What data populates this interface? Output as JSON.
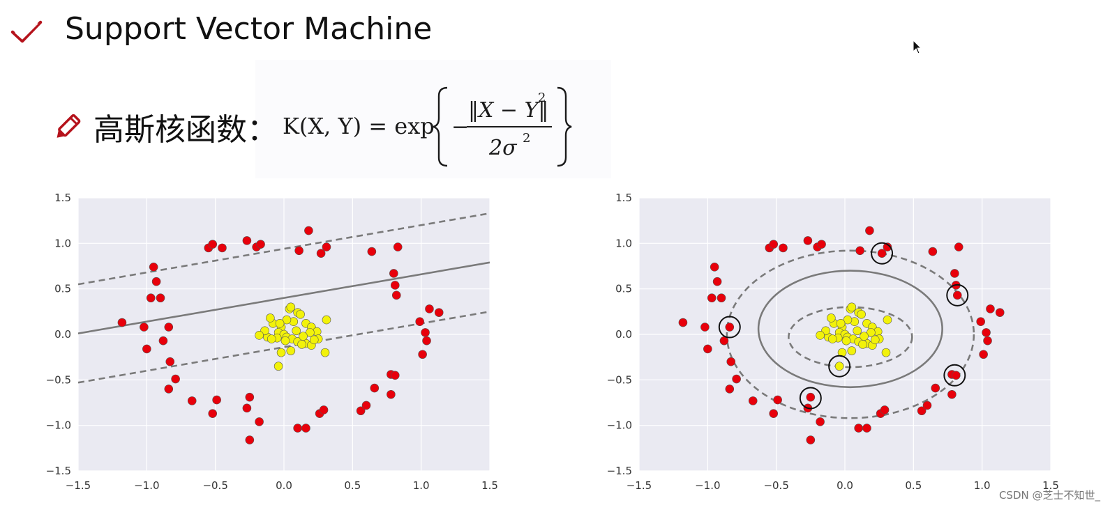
{
  "slide": {
    "title": "Support Vector Machine",
    "subtitle": "高斯核函数：",
    "formula": {
      "lhs": "K(X, Y) = exp",
      "numerator": "‖X − Y‖",
      "numerator_exp": "2",
      "denominator": "2σ",
      "denominator_exp": "2"
    },
    "check_icon": "check-icon",
    "pencil_icon": "pencil-icon",
    "accent_color": "#b5121b"
  },
  "watermark": "CSDN @芝士不知世_",
  "chart_data": [
    {
      "type": "scatter",
      "title": "",
      "xlabel": "",
      "ylabel": "",
      "xlim": [
        -1.5,
        1.5
      ],
      "ylim": [
        -1.5,
        1.5
      ],
      "xticks": [
        "−1.5",
        "−1.0",
        "−0.5",
        "0.0",
        "0.5",
        "1.0",
        "1.5"
      ],
      "yticks": [
        "1.5",
        "1.0",
        "0.5",
        "0.0",
        "−0.5",
        "−1.0",
        "−1.5"
      ],
      "grid": true,
      "decision_boundary": {
        "kind": "linear",
        "slope": 0.26,
        "intercept": 0.4,
        "margin_offset": 0.54
      },
      "series": [
        {
          "color": "#e8000b",
          "points": [
            [
              -1.18,
              0.13
            ],
            [
              -1.02,
              0.08
            ],
            [
              -1.0,
              -0.16
            ],
            [
              -0.97,
              0.4
            ],
            [
              -0.95,
              0.74
            ],
            [
              -0.93,
              0.58
            ],
            [
              -0.9,
              0.4
            ],
            [
              -0.88,
              -0.07
            ],
            [
              -0.84,
              0.08
            ],
            [
              -0.83,
              -0.3
            ],
            [
              -0.84,
              -0.6
            ],
            [
              -0.79,
              -0.49
            ],
            [
              -0.67,
              -0.73
            ],
            [
              -0.55,
              0.95
            ],
            [
              -0.52,
              0.99
            ],
            [
              -0.45,
              0.95
            ],
            [
              -0.52,
              -0.87
            ],
            [
              -0.49,
              -0.72
            ],
            [
              -0.27,
              1.03
            ],
            [
              -0.2,
              0.96
            ],
            [
              -0.17,
              0.99
            ],
            [
              -0.27,
              -0.81
            ],
            [
              -0.25,
              -0.69
            ],
            [
              -0.25,
              -1.16
            ],
            [
              -0.18,
              -0.96
            ],
            [
              0.11,
              0.92
            ],
            [
              0.18,
              1.14
            ],
            [
              0.27,
              0.89
            ],
            [
              0.31,
              0.96
            ],
            [
              0.1,
              -1.03
            ],
            [
              0.16,
              -1.03
            ],
            [
              0.26,
              -0.87
            ],
            [
              0.29,
              -0.83
            ],
            [
              0.56,
              -0.84
            ],
            [
              0.6,
              -0.78
            ],
            [
              0.64,
              0.91
            ],
            [
              0.66,
              -0.59
            ],
            [
              0.8,
              0.67
            ],
            [
              0.81,
              0.54
            ],
            [
              0.82,
              0.43
            ],
            [
              0.83,
              0.96
            ],
            [
              0.78,
              -0.44
            ],
            [
              0.81,
              -0.45
            ],
            [
              0.78,
              -0.66
            ],
            [
              0.99,
              0.14
            ],
            [
              1.03,
              0.02
            ],
            [
              1.04,
              -0.07
            ],
            [
              1.01,
              -0.22
            ],
            [
              1.06,
              0.28
            ],
            [
              1.13,
              0.24
            ]
          ]
        },
        {
          "color": "#f2f20a",
          "points": [
            [
              0.04,
              0.28
            ],
            [
              0.05,
              0.3
            ],
            [
              0.1,
              0.24
            ],
            [
              0.12,
              0.22
            ],
            [
              0.16,
              0.12
            ],
            [
              0.2,
              0.08
            ],
            [
              0.24,
              0.03
            ],
            [
              0.07,
              0.14
            ],
            [
              0.02,
              0.16
            ],
            [
              -0.02,
              0.08
            ],
            [
              -0.04,
              0.02
            ],
            [
              0.0,
              0.0
            ],
            [
              0.02,
              -0.03
            ],
            [
              0.06,
              -0.05
            ],
            [
              0.1,
              -0.08
            ],
            [
              0.16,
              -0.1
            ],
            [
              0.2,
              -0.12
            ],
            [
              0.25,
              -0.05
            ],
            [
              0.31,
              0.16
            ],
            [
              -0.08,
              0.12
            ],
            [
              -0.1,
              0.18
            ],
            [
              -0.12,
              -0.03
            ],
            [
              -0.05,
              -0.04
            ],
            [
              0.01,
              -0.07
            ],
            [
              -0.09,
              -0.05
            ],
            [
              -0.14,
              0.04
            ],
            [
              -0.18,
              -0.01
            ],
            [
              -0.02,
              -0.2
            ],
            [
              0.05,
              -0.18
            ],
            [
              0.13,
              -0.11
            ],
            [
              0.19,
              0.02
            ],
            [
              0.09,
              0.04
            ],
            [
              0.14,
              -0.02
            ],
            [
              0.3,
              -0.2
            ],
            [
              -0.04,
              -0.35
            ],
            [
              0.22,
              -0.06
            ],
            [
              -0.03,
              0.12
            ]
          ]
        }
      ]
    },
    {
      "type": "scatter",
      "title": "",
      "xlabel": "",
      "ylabel": "",
      "xlim": [
        -1.5,
        1.5
      ],
      "ylim": [
        -1.5,
        1.5
      ],
      "xticks": [
        "−1.5",
        "−1.0",
        "−0.5",
        "0.0",
        "0.5",
        "1.0",
        "1.5"
      ],
      "yticks": [
        "1.5",
        "1.0",
        "0.5",
        "0.0",
        "−0.5",
        "−1.0",
        "−1.5"
      ],
      "grid": true,
      "decision_boundary": {
        "kind": "rbf",
        "contours": [
          {
            "level": "margin-inner",
            "center": [
              0.04,
              -0.03
            ],
            "rx": 0.45,
            "ry": 0.33,
            "dashed": true
          },
          {
            "level": "boundary",
            "center": [
              0.04,
              0.06
            ],
            "rx": 0.67,
            "ry": 0.64,
            "dashed": false
          },
          {
            "level": "margin-outer",
            "center": [
              0.04,
              0.0
            ],
            "rx": 0.9,
            "ry": 0.92,
            "dashed": true
          }
        ]
      },
      "support_vectors": [
        [
          -0.84,
          0.08
        ],
        [
          0.27,
          0.89
        ],
        [
          0.82,
          0.43
        ],
        [
          0.8,
          -0.45
        ],
        [
          -0.25,
          -0.7
        ],
        [
          -0.04,
          -0.35
        ]
      ],
      "series": [
        {
          "color": "#e8000b",
          "points": [
            [
              -1.18,
              0.13
            ],
            [
              -1.02,
              0.08
            ],
            [
              -1.0,
              -0.16
            ],
            [
              -0.97,
              0.4
            ],
            [
              -0.95,
              0.74
            ],
            [
              -0.93,
              0.58
            ],
            [
              -0.9,
              0.4
            ],
            [
              -0.88,
              -0.07
            ],
            [
              -0.84,
              0.08
            ],
            [
              -0.83,
              -0.3
            ],
            [
              -0.84,
              -0.6
            ],
            [
              -0.79,
              -0.49
            ],
            [
              -0.67,
              -0.73
            ],
            [
              -0.55,
              0.95
            ],
            [
              -0.52,
              0.99
            ],
            [
              -0.45,
              0.95
            ],
            [
              -0.52,
              -0.87
            ],
            [
              -0.49,
              -0.72
            ],
            [
              -0.27,
              1.03
            ],
            [
              -0.2,
              0.96
            ],
            [
              -0.17,
              0.99
            ],
            [
              -0.27,
              -0.81
            ],
            [
              -0.25,
              -0.69
            ],
            [
              -0.25,
              -1.16
            ],
            [
              -0.18,
              -0.96
            ],
            [
              0.11,
              0.92
            ],
            [
              0.18,
              1.14
            ],
            [
              0.27,
              0.89
            ],
            [
              0.31,
              0.96
            ],
            [
              0.1,
              -1.03
            ],
            [
              0.16,
              -1.03
            ],
            [
              0.26,
              -0.87
            ],
            [
              0.29,
              -0.83
            ],
            [
              0.56,
              -0.84
            ],
            [
              0.6,
              -0.78
            ],
            [
              0.64,
              0.91
            ],
            [
              0.66,
              -0.59
            ],
            [
              0.8,
              0.67
            ],
            [
              0.81,
              0.54
            ],
            [
              0.82,
              0.43
            ],
            [
              0.83,
              0.96
            ],
            [
              0.78,
              -0.44
            ],
            [
              0.81,
              -0.45
            ],
            [
              0.78,
              -0.66
            ],
            [
              0.99,
              0.14
            ],
            [
              1.03,
              0.02
            ],
            [
              1.04,
              -0.07
            ],
            [
              1.01,
              -0.22
            ],
            [
              1.06,
              0.28
            ],
            [
              1.13,
              0.24
            ]
          ]
        },
        {
          "color": "#f2f20a",
          "points": [
            [
              0.04,
              0.28
            ],
            [
              0.05,
              0.3
            ],
            [
              0.1,
              0.24
            ],
            [
              0.12,
              0.22
            ],
            [
              0.16,
              0.12
            ],
            [
              0.2,
              0.08
            ],
            [
              0.24,
              0.03
            ],
            [
              0.07,
              0.14
            ],
            [
              0.02,
              0.16
            ],
            [
              -0.02,
              0.08
            ],
            [
              -0.04,
              0.02
            ],
            [
              0.0,
              0.0
            ],
            [
              0.02,
              -0.03
            ],
            [
              0.06,
              -0.05
            ],
            [
              0.1,
              -0.08
            ],
            [
              0.16,
              -0.1
            ],
            [
              0.2,
              -0.12
            ],
            [
              0.25,
              -0.05
            ],
            [
              0.31,
              0.16
            ],
            [
              -0.08,
              0.12
            ],
            [
              -0.1,
              0.18
            ],
            [
              -0.12,
              -0.03
            ],
            [
              -0.05,
              -0.04
            ],
            [
              0.01,
              -0.07
            ],
            [
              -0.09,
              -0.05
            ],
            [
              -0.14,
              0.04
            ],
            [
              -0.18,
              -0.01
            ],
            [
              -0.02,
              -0.2
            ],
            [
              0.05,
              -0.18
            ],
            [
              0.13,
              -0.11
            ],
            [
              0.19,
              0.02
            ],
            [
              0.09,
              0.04
            ],
            [
              0.14,
              -0.02
            ],
            [
              0.3,
              -0.2
            ],
            [
              -0.04,
              -0.35
            ],
            [
              0.22,
              -0.06
            ],
            [
              -0.03,
              0.12
            ]
          ]
        }
      ]
    }
  ]
}
